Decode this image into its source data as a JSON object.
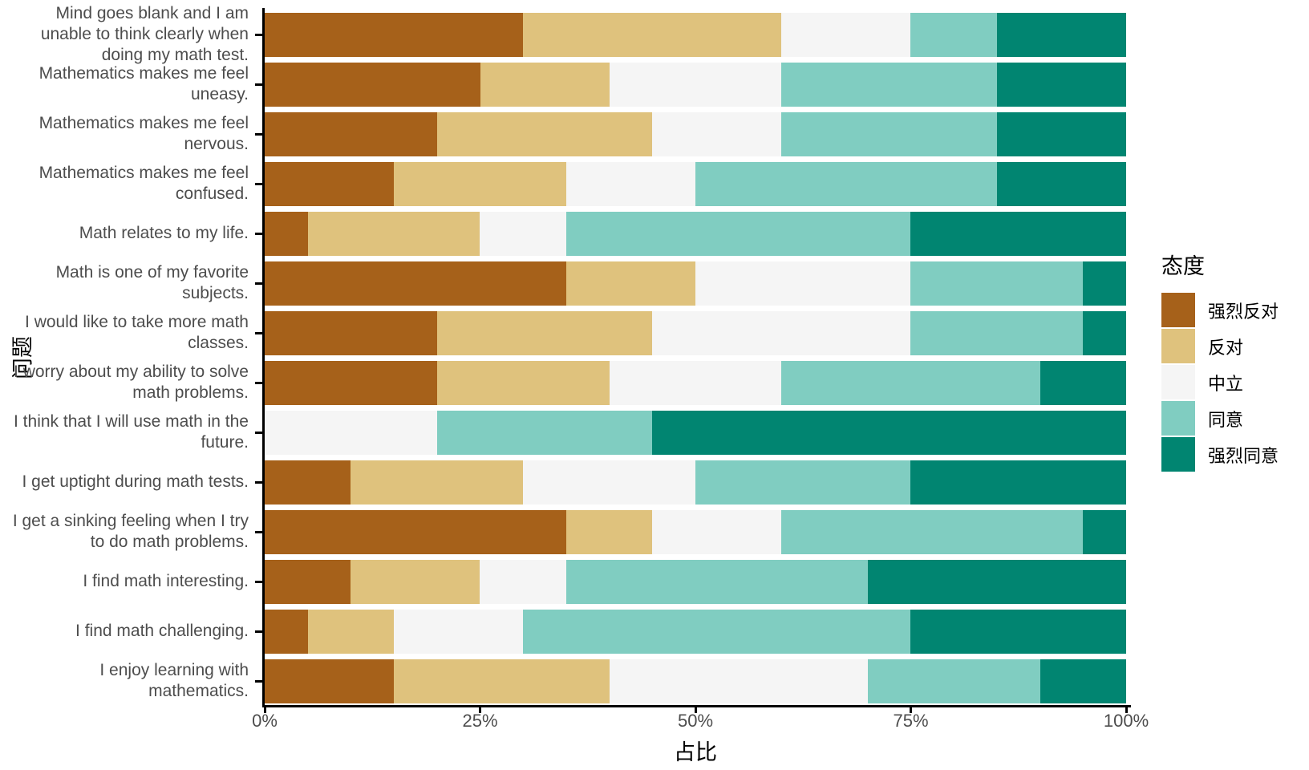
{
  "chart_data": {
    "type": "bar",
    "stacked": true,
    "orientation": "horizontal",
    "xlabel": "占比",
    "ylabel": "问题",
    "legend_title": "态度",
    "legend_position": "right",
    "xlim": [
      0,
      100
    ],
    "x_ticks": [
      {
        "value": 0,
        "label": "0%"
      },
      {
        "value": 25,
        "label": "25%"
      },
      {
        "value": 50,
        "label": "50%"
      },
      {
        "value": 75,
        "label": "75%"
      },
      {
        "value": 100,
        "label": "100%"
      }
    ],
    "grid": false,
    "categories": [
      "Mind goes blank and I am unable to think clearly when doing my math test.",
      "Mathematics makes me feel uneasy.",
      "Mathematics makes me feel nervous.",
      "Mathematics makes me feel confused.",
      "Math relates to my life.",
      "Math is one of my favorite subjects.",
      "I would like to take more math classes.",
      "I worry about my ability to solve math problems.",
      "I think that I will use math in the future.",
      "I get uptight during math tests.",
      "I get a sinking feeling when I try to do math problems.",
      "I find math interesting.",
      "I find math challenging.",
      "I enjoy learning with mathematics."
    ],
    "series": [
      {
        "name": "强烈反对",
        "color": "#A6611A",
        "values": [
          30,
          25,
          20,
          15,
          5,
          35,
          20,
          20,
          0,
          10,
          35,
          10,
          5,
          15
        ]
      },
      {
        "name": "反对",
        "color": "#DFC27D",
        "values": [
          30,
          15,
          25,
          20,
          20,
          15,
          25,
          20,
          0,
          20,
          10,
          15,
          10,
          25
        ]
      },
      {
        "name": "中立",
        "color": "#F5F5F5",
        "values": [
          15,
          20,
          15,
          15,
          10,
          25,
          30,
          20,
          20,
          20,
          15,
          10,
          15,
          30
        ]
      },
      {
        "name": "同意",
        "color": "#80CDC1",
        "values": [
          10,
          25,
          25,
          35,
          40,
          20,
          20,
          30,
          25,
          25,
          35,
          35,
          45,
          20
        ]
      },
      {
        "name": "强烈同意",
        "color": "#018571",
        "values": [
          15,
          15,
          15,
          15,
          25,
          5,
          5,
          10,
          55,
          25,
          5,
          30,
          25,
          10
        ]
      }
    ],
    "text_color_labels": "#4D4D4D",
    "text_color_titles": "#000000",
    "axis_color": "#000000"
  }
}
